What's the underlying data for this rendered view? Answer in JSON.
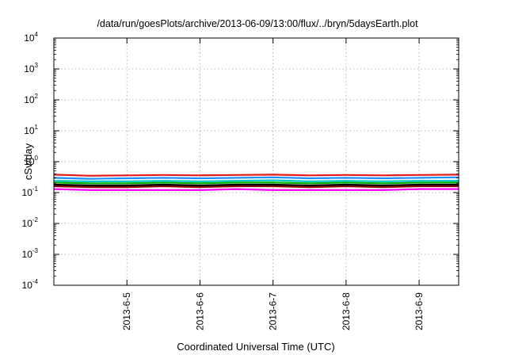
{
  "chart_data": {
    "type": "line",
    "title": "/data/run/goesPlots/archive/2013-06-09/13:00/flux/../bryn/5daysEarth.plot",
    "xlabel": "Coordinated Universal Time (UTC)",
    "ylabel": "cSv/day",
    "y_scale": "log",
    "ylim": [
      0.0001,
      10000
    ],
    "y_ticks": [
      {
        "base": "10",
        "exp": "-4",
        "value": 0.0001
      },
      {
        "base": "10",
        "exp": "-3",
        "value": 0.001
      },
      {
        "base": "10",
        "exp": "-2",
        "value": 0.01
      },
      {
        "base": "10",
        "exp": "-1",
        "value": 0.1
      },
      {
        "base": "10",
        "exp": "0",
        "value": 1
      },
      {
        "base": "10",
        "exp": "1",
        "value": 10
      },
      {
        "base": "10",
        "exp": "2",
        "value": 100
      },
      {
        "base": "10",
        "exp": "3",
        "value": 1000
      },
      {
        "base": "10",
        "exp": "4",
        "value": 10000
      }
    ],
    "x_type": "date",
    "xlim": [
      "2013-06-04T00:00",
      "2013-06-09T13:00"
    ],
    "x_ticks": [
      {
        "label": "2013-6-5",
        "value": "2013-06-05T00:00"
      },
      {
        "label": "2013-6-6",
        "value": "2013-06-06T00:00"
      },
      {
        "label": "2013-6-7",
        "value": "2013-06-07T00:00"
      },
      {
        "label": "2013-6-8",
        "value": "2013-06-08T00:00"
      },
      {
        "label": "2013-6-9",
        "value": "2013-06-09T00:00"
      }
    ],
    "grid": true,
    "x": [
      "2013-06-04T00:00",
      "2013-06-04T12:00",
      "2013-06-05T00:00",
      "2013-06-05T12:00",
      "2013-06-06T00:00",
      "2013-06-06T12:00",
      "2013-06-07T00:00",
      "2013-06-07T12:00",
      "2013-06-08T00:00",
      "2013-06-08T12:00",
      "2013-06-09T00:00",
      "2013-06-09T13:00"
    ],
    "series": [
      {
        "color": "#e41a1c",
        "values": [
          0.38,
          0.35,
          0.36,
          0.37,
          0.36,
          0.37,
          0.38,
          0.36,
          0.37,
          0.36,
          0.37,
          0.38
        ]
      },
      {
        "color": "#1e90ff",
        "values": [
          0.3,
          0.28,
          0.29,
          0.3,
          0.29,
          0.3,
          0.31,
          0.29,
          0.3,
          0.29,
          0.3,
          0.31
        ]
      },
      {
        "color": "#00c8c8",
        "values": [
          0.24,
          0.23,
          0.23,
          0.24,
          0.23,
          0.24,
          0.25,
          0.23,
          0.24,
          0.23,
          0.24,
          0.24
        ]
      },
      {
        "color": "#00b000",
        "values": [
          0.21,
          0.2,
          0.2,
          0.21,
          0.2,
          0.21,
          0.21,
          0.2,
          0.21,
          0.2,
          0.21,
          0.21
        ]
      },
      {
        "color": "#000000",
        "values": [
          0.18,
          0.17,
          0.17,
          0.18,
          0.17,
          0.18,
          0.18,
          0.17,
          0.18,
          0.17,
          0.18,
          0.18
        ]
      },
      {
        "color": "#8b0000",
        "values": [
          0.16,
          0.15,
          0.15,
          0.16,
          0.15,
          0.16,
          0.16,
          0.15,
          0.16,
          0.15,
          0.16,
          0.16
        ]
      },
      {
        "color": "#ff00ff",
        "values": [
          0.13,
          0.12,
          0.12,
          0.12,
          0.12,
          0.13,
          0.12,
          0.12,
          0.12,
          0.12,
          0.13,
          0.13
        ]
      }
    ]
  }
}
